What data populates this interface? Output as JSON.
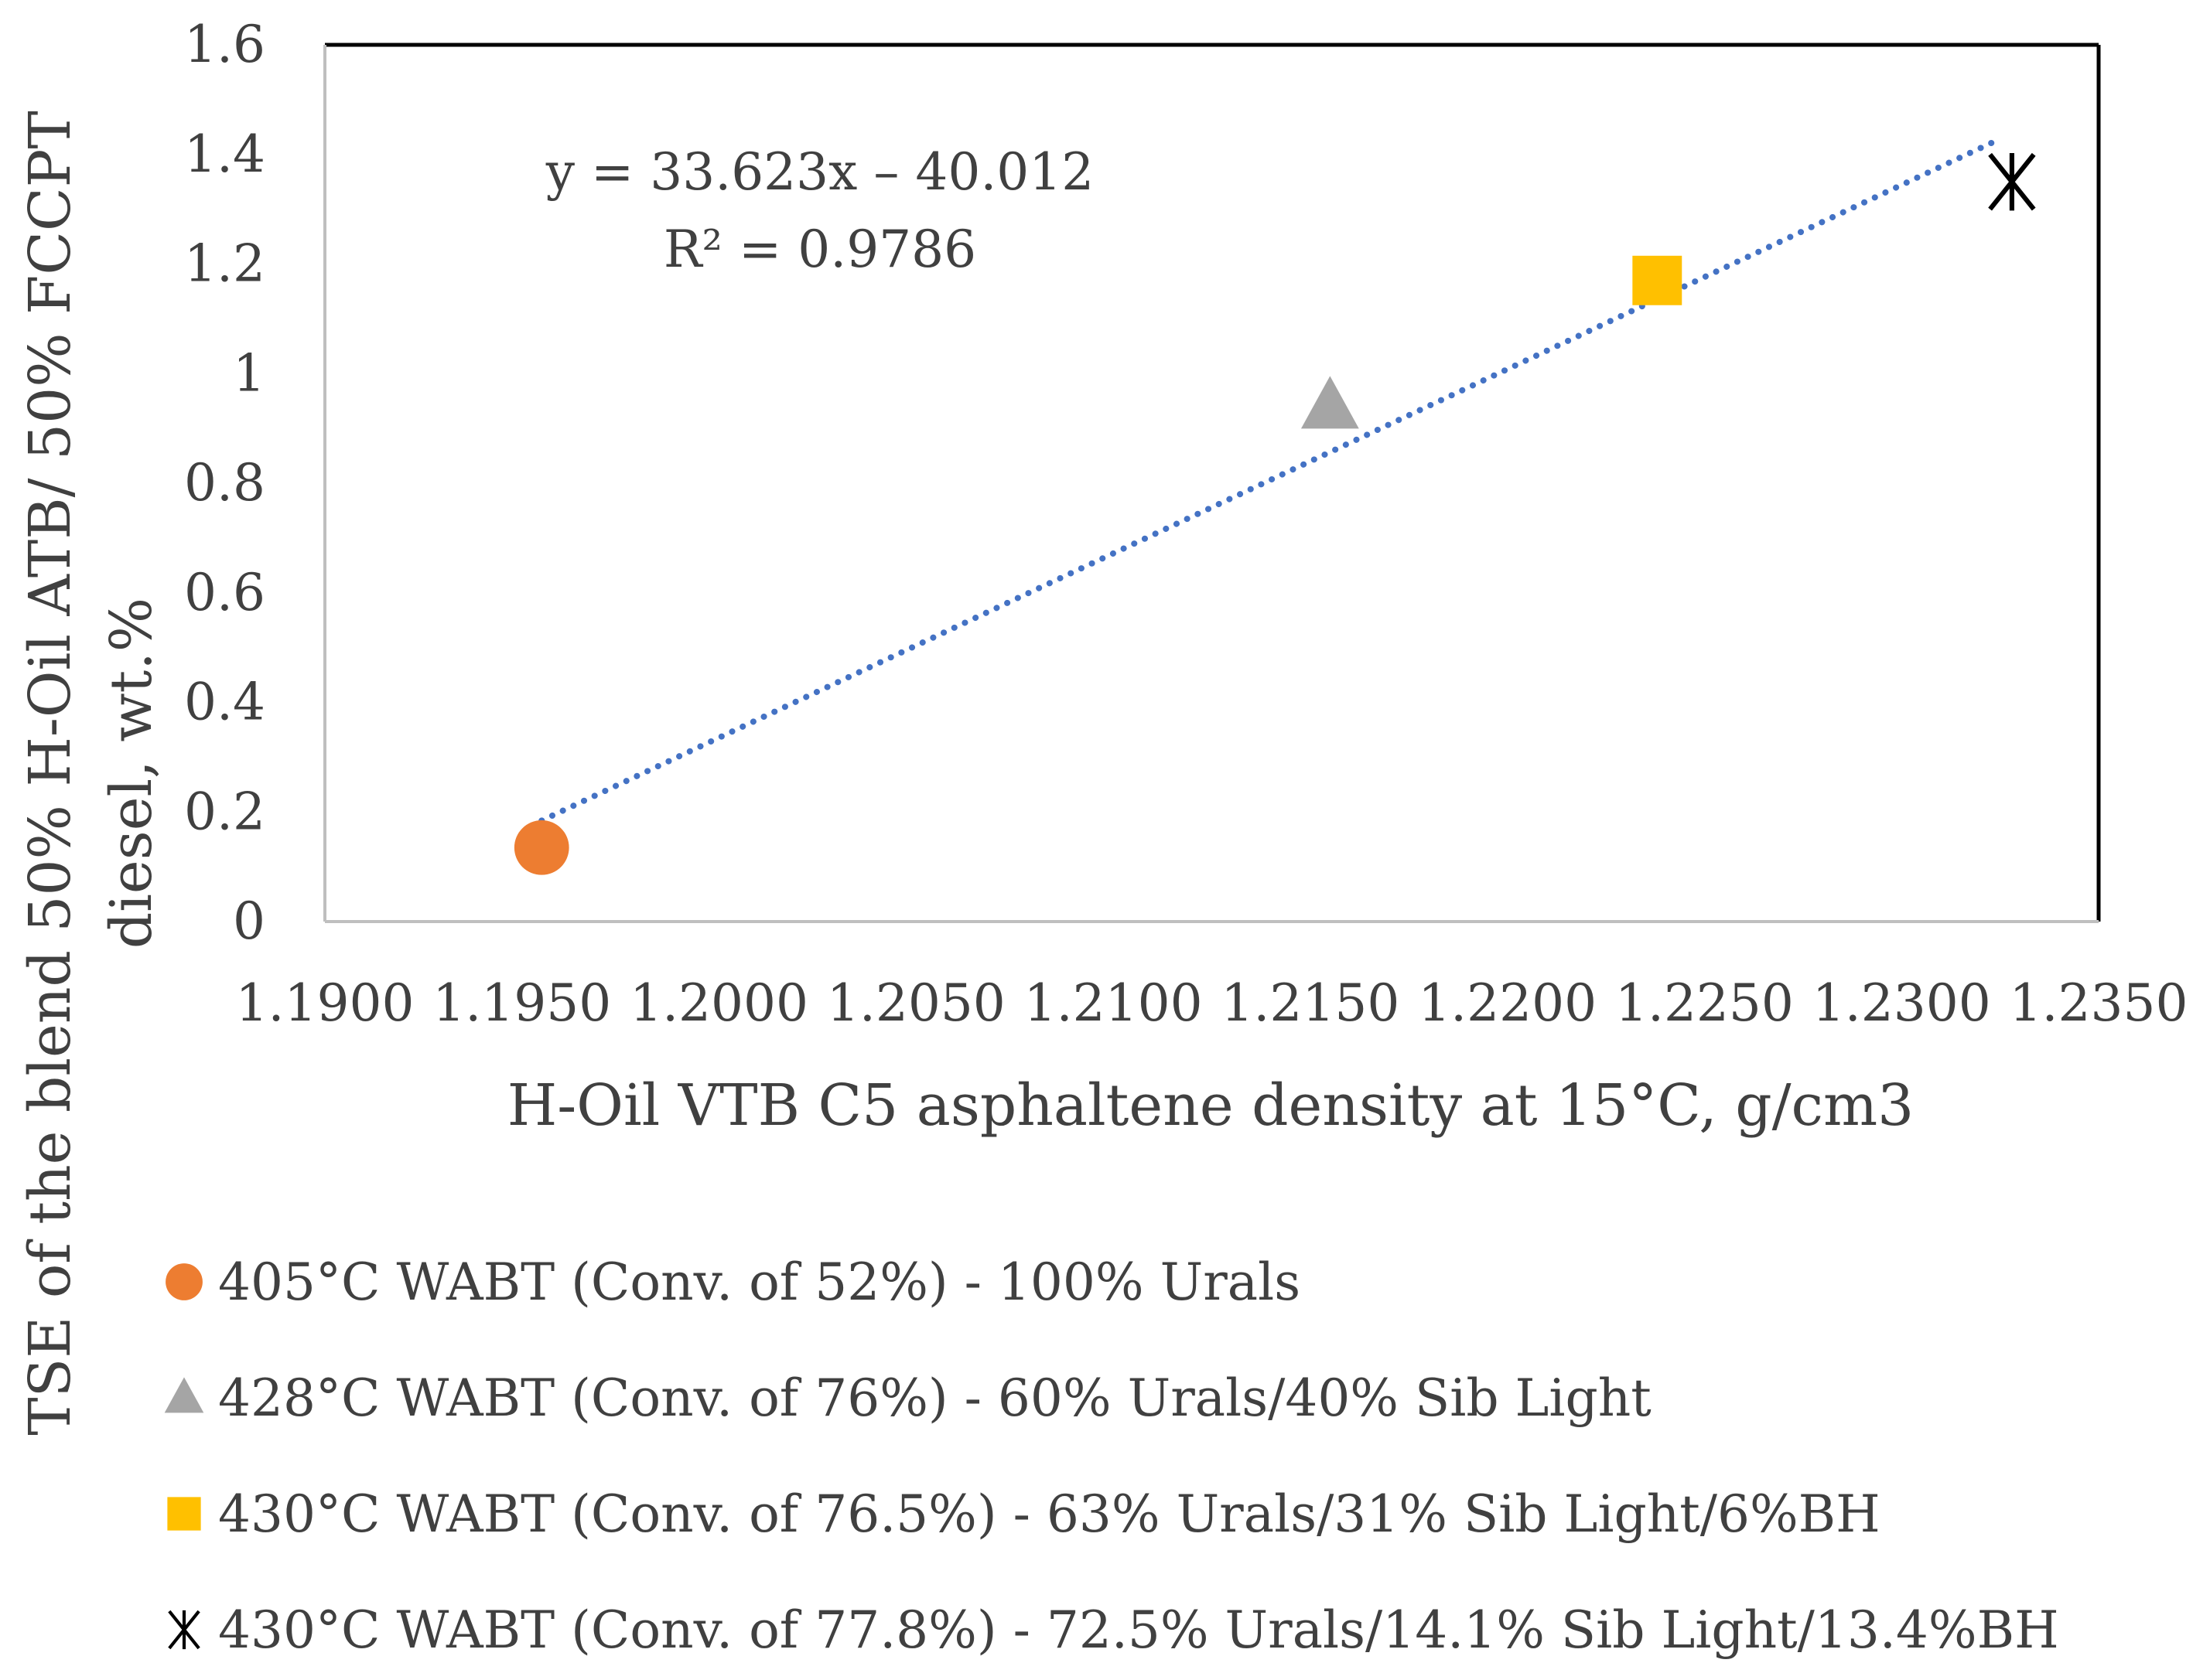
{
  "chart_data": {
    "type": "scatter",
    "title": "",
    "xlabel": "H-Oil VTB C5 asphaltene density at 15°C, g/cm3",
    "ylabel_lines": [
      "TSE of the blend 50% H-Oil ATB/ 50% FCCPT",
      "diesel, wt.%"
    ],
    "xlim": [
      1.19,
      1.235
    ],
    "ylim": [
      0,
      1.6
    ],
    "x_ticks": [
      "1.1900",
      "1.1950",
      "1.2000",
      "1.2050",
      "1.2100",
      "1.2150",
      "1.2200",
      "1.2250",
      "1.2300",
      "1.2350"
    ],
    "y_ticks": [
      "0",
      "0.2",
      "0.4",
      "0.6",
      "0.8",
      "1",
      "1.2",
      "1.4",
      "1.6"
    ],
    "grid": false,
    "legend_position": "bottom",
    "series": [
      {
        "name": "405°C WABT (Conv. of 52%) - 100% Urals",
        "marker": "circle",
        "color": "#ED7D31",
        "x": 1.1955,
        "y": 0.135
      },
      {
        "name": "428°C WABT (Conv. of 76%) - 60% Urals/40% Sib Light",
        "marker": "triangle",
        "color": "#A5A5A5",
        "x": 1.2155,
        "y": 0.94
      },
      {
        "name": "430°C WABT (Conv. of 76.5%) - 63% Urals/31% Sib Light/6%BH",
        "marker": "square",
        "color": "#FFC000",
        "x": 1.2238,
        "y": 1.17
      },
      {
        "name": "430°C WABT (Conv. of 77.8%) - 72.5% Urals/14.1% Sib Light/13.4%BH",
        "marker": "asterisk",
        "color": "#000000",
        "x": 1.2328,
        "y": 1.35
      }
    ],
    "trendline": {
      "type": "linear",
      "style": "dotted",
      "color": "#4472C4",
      "slope": 33.623,
      "intercept": -40.012,
      "x_range": [
        1.1955,
        1.2325
      ],
      "equation": "y = 33.623x – 40.012",
      "r_squared_label": "R² = 0.9786"
    }
  }
}
